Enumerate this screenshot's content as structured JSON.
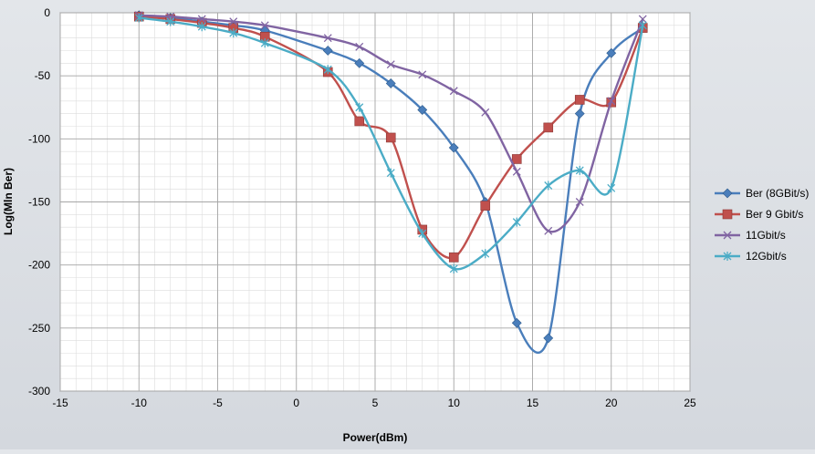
{
  "chart_data": {
    "type": "line",
    "xlabel": "Power(dBm)",
    "ylabel": "Log(Mln Ber)",
    "xlim": [
      -15,
      25
    ],
    "ylim": [
      -300,
      0
    ],
    "x_ticks": [
      -15,
      -10,
      -5,
      0,
      5,
      10,
      15,
      20,
      25
    ],
    "y_ticks": [
      0,
      -50,
      -100,
      -150,
      -200,
      -250,
      -300
    ],
    "grid": true,
    "legend_position": "right",
    "series": [
      {
        "name": "Ber (8GBit/s)",
        "color": "#4a7ebb",
        "marker": "diamond",
        "x": [
          -10,
          -8,
          -6,
          -4,
          -2,
          2,
          4,
          6,
          8,
          10,
          12,
          14,
          16,
          18,
          20,
          22
        ],
        "y": [
          -2,
          -4,
          -7,
          -10,
          -14,
          -30,
          -40,
          -56,
          -77,
          -107,
          -150,
          -246,
          -258,
          -80,
          -32,
          -12
        ]
      },
      {
        "name": "Ber 9 Gbit/s",
        "color": "#c0504d",
        "marker": "square",
        "x": [
          -10,
          -8,
          -6,
          -4,
          -2,
          2,
          4,
          6,
          8,
          10,
          12,
          14,
          16,
          18,
          20,
          22
        ],
        "y": [
          -3,
          -5,
          -8,
          -12,
          -19,
          -47,
          -86,
          -99,
          -172,
          -194,
          -153,
          -116,
          -91,
          -69,
          -71,
          -12
        ]
      },
      {
        "name": "11Gbit/s",
        "color": "#8064a2",
        "marker": "x",
        "x": [
          -10,
          -8,
          -6,
          -4,
          -2,
          2,
          4,
          6,
          8,
          10,
          12,
          14,
          16,
          18,
          20,
          22
        ],
        "y": [
          -2,
          -3,
          -5,
          -7,
          -10,
          -20,
          -27,
          -41,
          -49,
          -62,
          -79,
          -126,
          -173,
          -150,
          -70,
          -5
        ]
      },
      {
        "name": "12Gbit/s",
        "color": "#4bacc6",
        "marker": "star",
        "x": [
          -10,
          -8,
          -6,
          -4,
          -2,
          2,
          4,
          6,
          8,
          10,
          12,
          14,
          16,
          18,
          20,
          22
        ],
        "y": [
          -4,
          -7,
          -11,
          -16,
          -24,
          -45,
          -75,
          -127,
          -175,
          -203,
          -191,
          -166,
          -137,
          -125,
          -139,
          -10
        ]
      }
    ]
  }
}
